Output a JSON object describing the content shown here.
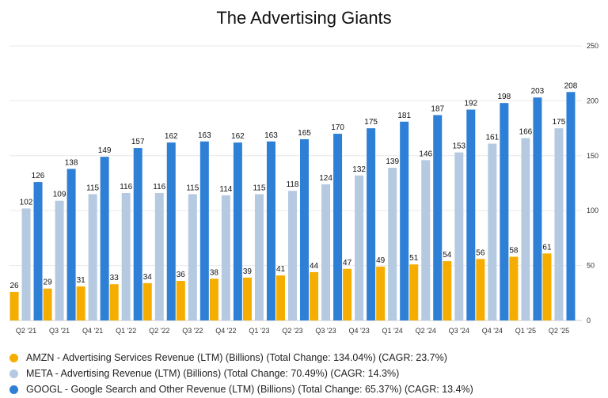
{
  "colors": {
    "amzn": "#F5AE00",
    "meta": "#B5CAE0",
    "googl": "#2E7FD6"
  },
  "chart_data": {
    "type": "bar",
    "title": "The Advertising Giants",
    "categories": [
      "Q2 '21",
      "Q3 '21",
      "Q4 '21",
      "Q1 '22",
      "Q2 '22",
      "Q3 '22",
      "Q4 '22",
      "Q1 '23",
      "Q2 '23",
      "Q3 '23",
      "Q4 '23",
      "Q1 '24",
      "Q2 '24",
      "Q3 '24",
      "Q4 '24",
      "Q1 '25",
      "Q2 '25"
    ],
    "series": [
      {
        "name": "AMZN - Advertising Services Revenue (LTM) (Billions) (Total Change: 134.04%) (CAGR: 23.7%)",
        "color": "#F5AE00",
        "values": [
          26,
          29,
          31,
          33,
          34,
          36,
          38,
          39,
          41,
          44,
          47,
          49,
          51,
          54,
          56,
          58,
          61
        ]
      },
      {
        "name": "META - Advertising Revenue (LTM) (Billions) (Total Change: 70.49%) (CAGR: 14.3%)",
        "color": "#B5CAE0",
        "values": [
          102,
          109,
          115,
          116,
          116,
          115,
          114,
          115,
          118,
          124,
          132,
          139,
          146,
          153,
          161,
          166,
          175
        ]
      },
      {
        "name": "GOOGL - Google Search and Other Revenue (LTM) (Billions) (Total Change: 65.37%) (CAGR: 13.4%)",
        "color": "#2E7FD6",
        "values": [
          126,
          138,
          149,
          157,
          162,
          163,
          162,
          163,
          165,
          170,
          175,
          181,
          187,
          192,
          198,
          203,
          208
        ]
      }
    ],
    "ylim": [
      0,
      250
    ],
    "yticks": [
      0,
      50,
      100,
      150,
      200,
      250
    ],
    "y_axis_side": "right",
    "grid": true,
    "legend_position": "bottom-left",
    "data_labels": true
  }
}
